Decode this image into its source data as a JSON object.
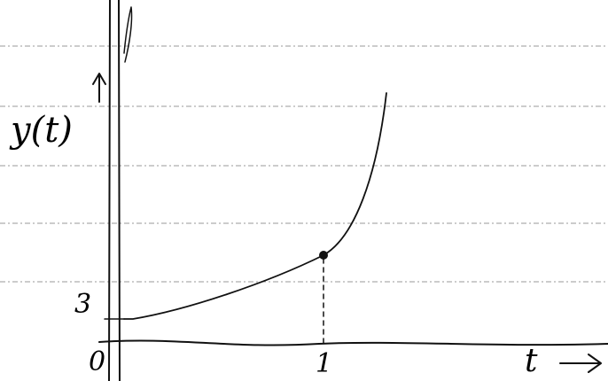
{
  "axis": {
    "y_label": "y(t)",
    "x_label": "t"
  },
  "ticks": {
    "y": "3",
    "origin": "0",
    "x": "1"
  }
}
